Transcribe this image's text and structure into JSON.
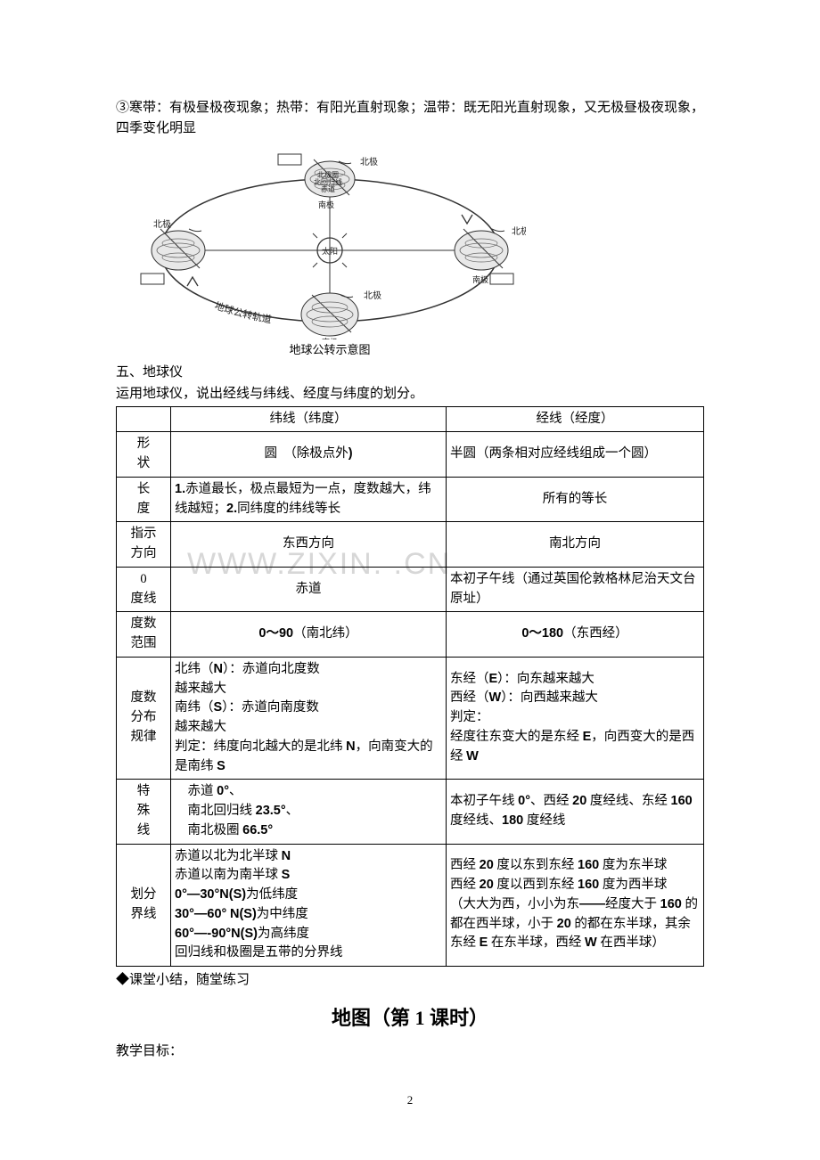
{
  "intro": {
    "line1": "③寒带：有极昼极夜现象；热带：有阳光直射现象；温带：既无阳光直射现象，又无极昼极夜现象，四季变化明显"
  },
  "diagram": {
    "caption": "地球公转示意图",
    "center_label": "太阳",
    "orbit_label": "地球公转轨道",
    "labels": {
      "north": "北极",
      "south": "南极",
      "tropic": "北回归线",
      "arctic": "北极圈",
      "equator": "赤道"
    },
    "colors": {
      "stroke": "#333333",
      "fill_globe": "#e8e8e8",
      "fill_box": "#ffffff",
      "text": "#222222"
    }
  },
  "section5": {
    "heading": "五、地球仪",
    "sub": "运用地球仪，说出经线与纬线、经度与纬度的划分。"
  },
  "table": {
    "header_blank": "",
    "header_lat": "纬线（纬度）",
    "header_lon": "经线（经度）",
    "rows": [
      {
        "label": "形状",
        "lat": "圆　（除极点外)",
        "lon": "半圆（两条相对应经线组成一个圆）",
        "lat_align": "center",
        "lon_align": "left"
      },
      {
        "label": "长度",
        "lat": "1.赤道最长，极点最短为一点，度数越大，纬线越短；2.同纬度的纬线等长",
        "lon": "所有的等长",
        "lat_align": "left",
        "lon_align": "center"
      },
      {
        "label": "指示方向",
        "lat": "东西方向",
        "lon": "南北方向",
        "lat_align": "center",
        "lon_align": "center"
      },
      {
        "label": "0 度线",
        "lat": "赤道",
        "lon": "本初子午线（通过英国伦敦格林尼治天文台原址）",
        "lat_align": "center",
        "lon_align": "left"
      },
      {
        "label": "度数范围",
        "lat": "0～90（南北纬）",
        "lon": "0～180（东西经）",
        "lat_align": "center",
        "lon_align": "center"
      },
      {
        "label": "度数分布规律",
        "lat": "北纬（N）：赤道向北度数\n越来越大\n南纬（S）：赤道向南度数\n越来越大\n判定：纬度向北越大的是北纬 N，向南变大的是南纬 S",
        "lon": "东经（E）：向东越来越大\n西经（W）：向西越来越大\n判定：\n经度往东变大的是东经 E，向西变大的是西经 W",
        "lat_align": "left",
        "lon_align": "left"
      },
      {
        "label": "特殊线",
        "lat": "　赤道 0°、\n　南北回归线 23.5°、\n　南北极圈 66.5°",
        "lon": "本初子午线 0°、西经 20 度经线、东经 160 度经线、180 度经线",
        "lat_align": "left",
        "lon_align": "left"
      },
      {
        "label": "划分界线",
        "lat": "赤道以北为北半球 N\n赤道以南为南半球 S\n0°—30°N(S)为低纬度\n30°—60° N(S)为中纬度\n60°—-90°N(S)为高纬度\n回归线和极圈是五带的分界线",
        "lon": "西经 20 度以东到东经 160 度为东半球\n西经 20 度以西到东经 160 度为西半球\n（大大为西，小小为东——经度大于 160 的都在西半球，小于 20 的都在东半球，其余东经 E 在东半球，西经 W 在西半球）",
        "lat_align": "left",
        "lon_align": "left"
      }
    ]
  },
  "summary": "◆课堂小结，随堂练习",
  "next_title": "地图（第 1 课时）",
  "goal_label": "教学目标：",
  "page_number": "2",
  "watermark": "WWW.ZIXIN.    .CN",
  "colors": {
    "text": "#000000",
    "border": "#000000",
    "watermark": "#d7d7d7",
    "background": "#ffffff"
  }
}
